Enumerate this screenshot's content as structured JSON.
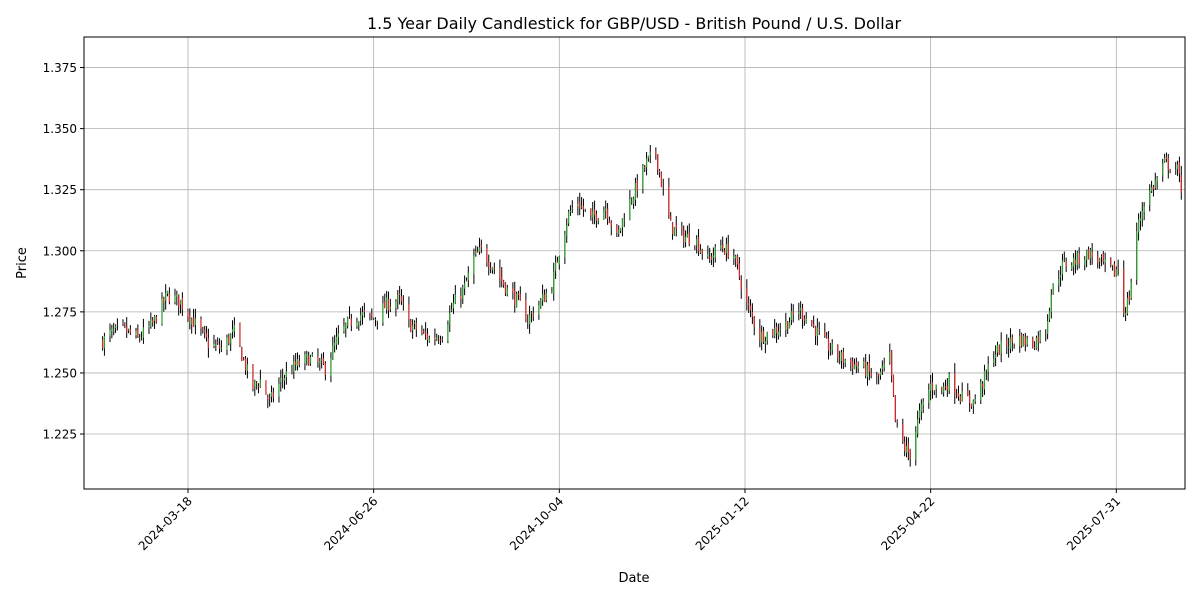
{
  "chart_data": {
    "type": "candlestick",
    "title": "1.5 Year Daily Candlestick for GBP/USD - British Pound / U.S. Dollar",
    "xlabel": "Date",
    "ylabel": "Price",
    "grid": true,
    "x_range": [
      "2024-01-22",
      "2025-09-06"
    ],
    "ylim": [
      1.2025,
      1.3875
    ],
    "x_ticks": [
      "2024-03-18",
      "2024-06-26",
      "2024-10-04",
      "2025-01-12",
      "2025-04-22",
      "2025-07-31"
    ],
    "y_ticks": [
      "1.225",
      "1.250",
      "1.275",
      "1.300",
      "1.325",
      "1.350",
      "1.375"
    ],
    "colors": {
      "up": "#2ca02c",
      "down": "#d62728",
      "wick": "#000000",
      "grid": "#b0b0b0"
    },
    "anchors": [
      [
        "2024-02-01",
        1.263
      ],
      [
        "2024-02-05",
        1.266
      ],
      [
        "2024-02-12",
        1.268
      ],
      [
        "2024-02-20",
        1.264
      ],
      [
        "2024-02-28",
        1.27
      ],
      [
        "2024-03-07",
        1.282
      ],
      [
        "2024-03-14",
        1.279
      ],
      [
        "2024-03-22",
        1.27
      ],
      [
        "2024-03-29",
        1.262
      ],
      [
        "2024-04-05",
        1.26
      ],
      [
        "2024-04-12",
        1.267
      ],
      [
        "2024-04-17",
        1.255
      ],
      [
        "2024-04-22",
        1.244
      ],
      [
        "2024-04-26",
        1.247
      ],
      [
        "2024-05-01",
        1.238
      ],
      [
        "2024-05-08",
        1.248
      ],
      [
        "2024-05-15",
        1.253
      ],
      [
        "2024-05-22",
        1.256
      ],
      [
        "2024-05-31",
        1.252
      ],
      [
        "2024-06-06",
        1.263
      ],
      [
        "2024-06-12",
        1.27
      ],
      [
        "2024-06-19",
        1.274
      ],
      [
        "2024-06-26",
        1.272
      ],
      [
        "2024-07-03",
        1.278
      ],
      [
        "2024-07-10",
        1.28
      ],
      [
        "2024-07-15",
        1.27
      ],
      [
        "2024-07-19",
        1.268
      ],
      [
        "2024-07-26",
        1.264
      ],
      [
        "2024-08-02",
        1.266
      ],
      [
        "2024-08-08",
        1.278
      ],
      [
        "2024-08-14",
        1.285
      ],
      [
        "2024-08-19",
        1.297
      ],
      [
        "2024-08-23",
        1.3
      ],
      [
        "2024-08-30",
        1.293
      ],
      [
        "2024-09-06",
        1.284
      ],
      [
        "2024-09-12",
        1.279
      ],
      [
        "2024-09-17",
        1.272
      ],
      [
        "2024-09-24",
        1.279
      ],
      [
        "2024-09-30",
        1.286
      ],
      [
        "2024-10-04",
        1.3
      ],
      [
        "2024-10-09",
        1.315
      ],
      [
        "2024-10-14",
        1.32
      ],
      [
        "2024-10-21",
        1.313
      ],
      [
        "2024-10-29",
        1.318
      ],
      [
        "2024-11-04",
        1.305
      ],
      [
        "2024-11-08",
        1.315
      ],
      [
        "2024-11-14",
        1.325
      ],
      [
        "2024-11-20",
        1.336
      ],
      [
        "2024-11-25",
        1.34
      ],
      [
        "2024-11-28",
        1.328
      ],
      [
        "2024-12-03",
        1.31
      ],
      [
        "2024-12-09",
        1.306
      ],
      [
        "2024-12-16",
        1.305
      ],
      [
        "2024-12-23",
        1.296
      ],
      [
        "2024-12-30",
        1.302
      ],
      [
        "2025-01-06",
        1.298
      ],
      [
        "2025-01-13",
        1.278
      ],
      [
        "2025-01-20",
        1.265
      ],
      [
        "2025-01-27",
        1.267
      ],
      [
        "2025-02-03",
        1.27
      ],
      [
        "2025-02-10",
        1.276
      ],
      [
        "2025-02-17",
        1.27
      ],
      [
        "2025-02-24",
        1.262
      ],
      [
        "2025-03-03",
        1.257
      ],
      [
        "2025-03-10",
        1.254
      ],
      [
        "2025-03-17",
        1.252
      ],
      [
        "2025-03-24",
        1.247
      ],
      [
        "2025-03-31",
        1.256
      ],
      [
        "2025-04-03",
        1.23
      ],
      [
        "2025-04-08",
        1.219
      ],
      [
        "2025-04-11",
        1.217
      ],
      [
        "2025-04-16",
        1.233
      ],
      [
        "2025-04-22",
        1.245
      ],
      [
        "2025-04-28",
        1.243
      ],
      [
        "2025-05-02",
        1.247
      ],
      [
        "2025-05-09",
        1.24
      ],
      [
        "2025-05-15",
        1.238
      ],
      [
        "2025-05-20",
        1.246
      ],
      [
        "2025-05-26",
        1.258
      ],
      [
        "2025-06-02",
        1.262
      ],
      [
        "2025-06-09",
        1.264
      ],
      [
        "2025-06-16",
        1.262
      ],
      [
        "2025-06-23",
        1.268
      ],
      [
        "2025-06-26",
        1.283
      ],
      [
        "2025-07-02",
        1.294
      ],
      [
        "2025-07-09",
        1.296
      ],
      [
        "2025-07-16",
        1.299
      ],
      [
        "2025-07-23",
        1.295
      ],
      [
        "2025-07-30",
        1.291
      ],
      [
        "2025-08-02",
        1.295
      ],
      [
        "2025-08-04",
        1.275
      ],
      [
        "2025-08-07",
        1.281
      ],
      [
        "2025-08-11",
        1.308
      ],
      [
        "2025-08-15",
        1.32
      ],
      [
        "2025-08-21",
        1.328
      ],
      [
        "2025-08-26",
        1.336
      ],
      [
        "2025-09-02",
        1.333
      ],
      [
        "2025-09-04",
        1.326
      ]
    ]
  }
}
